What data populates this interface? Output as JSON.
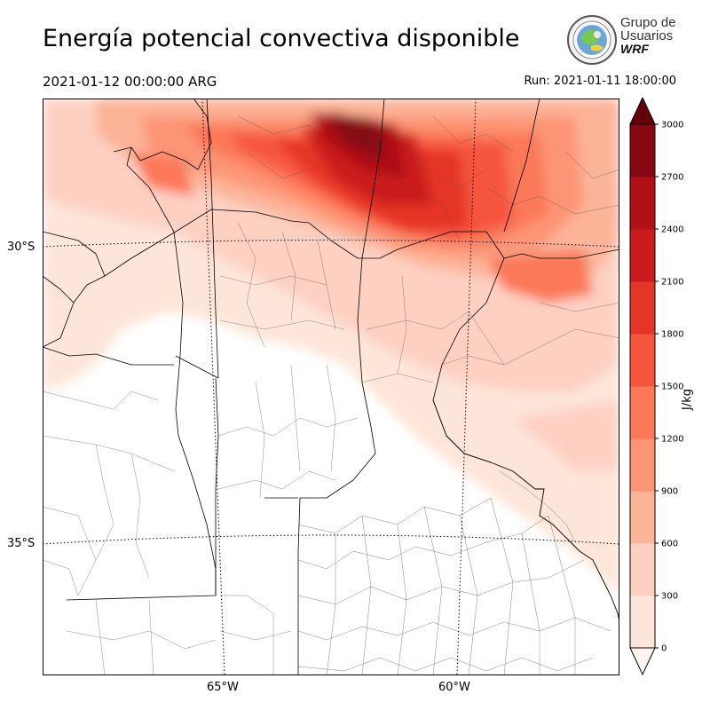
{
  "header": {
    "title": "Energía potencial convectiva disponible",
    "valid_time": "2021-01-12 00:00:00 ARG",
    "run_time": "Run: 2021-01-11 18:00:00"
  },
  "logo": {
    "line1": "Grupo de",
    "line2": "Usuarios",
    "line3": "WRF"
  },
  "map": {
    "variable": "CAPE",
    "lat_labels": [
      "30°S",
      "35°S"
    ],
    "lon_labels": [
      "65°W",
      "60°W"
    ],
    "shading_colors": [
      "#fee5d9",
      "#fdd0c2",
      "#fcb499",
      "#fc9576",
      "#fb7858",
      "#f5553d",
      "#e53428",
      "#cb1b1e",
      "#af1117",
      "#850812",
      "#67000d"
    ]
  },
  "colorbar": {
    "unit": "J/kg",
    "levels": [
      0,
      300,
      600,
      900,
      1200,
      1500,
      1800,
      2100,
      2400,
      2700,
      3000
    ],
    "tick_labels": [
      "0",
      "300",
      "600",
      "900",
      "1200",
      "1500",
      "1800",
      "2100",
      "2400",
      "2700",
      "3000"
    ],
    "colors": [
      "#fee5d9",
      "#fdd0c2",
      "#fcb499",
      "#fc9576",
      "#fb7858",
      "#f5553d",
      "#e53428",
      "#cb1b1e",
      "#af1117",
      "#850812"
    ],
    "over_color": "#67000d",
    "under_color": "#fff5f0",
    "extend": "both"
  }
}
